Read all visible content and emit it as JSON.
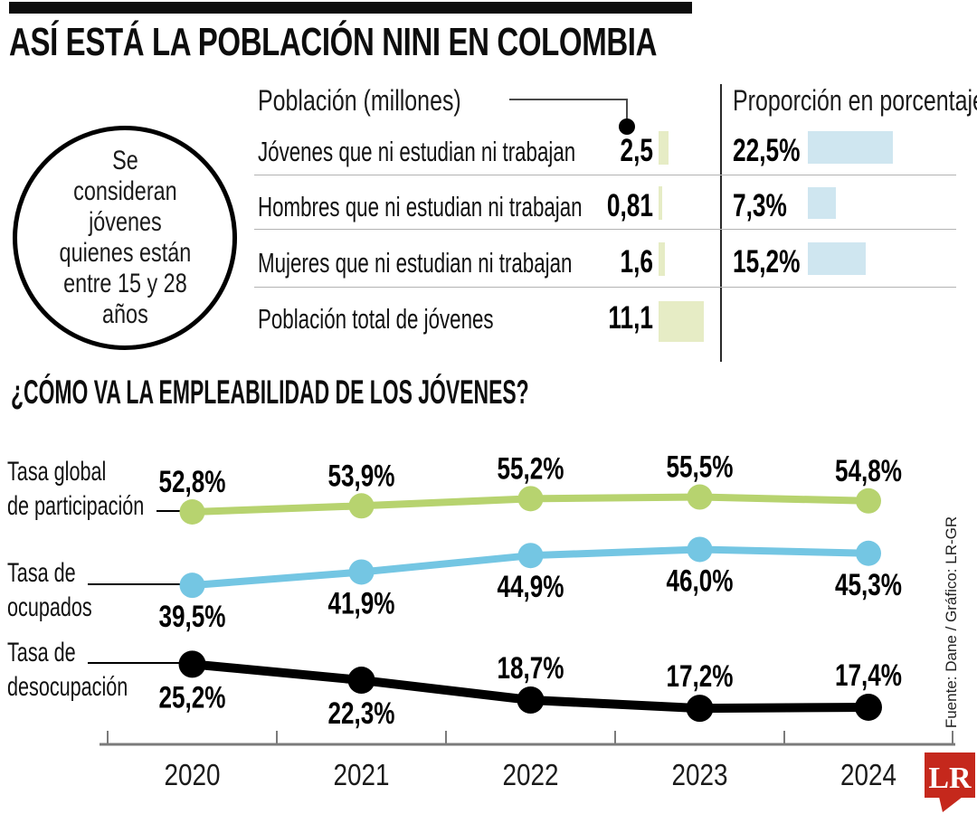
{
  "title": "ASÍ ESTÁ LA POBLACIÓN NINI EN COLOMBIA",
  "note_circle": {
    "text": "Se consideran jóvenes quienes están entre 15 y 28 años",
    "lines": [
      "Se",
      "consideran",
      "jóvenes",
      "quienes están",
      "entre 15 y 28",
      "años"
    ]
  },
  "table": {
    "col1_header": "Población (millones)",
    "col2_header": "Proporción en porcentaje",
    "rows": [
      {
        "label": "Jóvenes que ni estudian ni trabajan",
        "millones": "2,5",
        "millones_val": 2.5,
        "pct": "22,5%",
        "pct_val": 22.5
      },
      {
        "label": "Hombres que ni estudian ni trabajan",
        "millones": "0,81",
        "millones_val": 0.81,
        "pct": "7,3%",
        "pct_val": 7.3
      },
      {
        "label": "Mujeres que ni estudian ni trabajan",
        "millones": "1,6",
        "millones_val": 1.6,
        "pct": "15,2%",
        "pct_val": 15.2
      },
      {
        "label": "Población total de jóvenes",
        "millones": "11,1",
        "millones_val": 11.1,
        "pct": "",
        "pct_val": 0
      }
    ]
  },
  "section2_title": "¿CÓMO VA LA EMPLEABILIDAD DE LOS JÓVENES?",
  "chart_data": {
    "type": "line",
    "title": "¿Cómo va la empleabilidad de los jóvenes?",
    "x": [
      "2020",
      "2021",
      "2022",
      "2023",
      "2024"
    ],
    "unit": "%",
    "ylim": [
      15,
      58
    ],
    "grid": false,
    "legend_position": "left",
    "series": [
      {
        "name": "Tasa global de participación",
        "name_lines": [
          "Tasa global",
          "de participación"
        ],
        "color": "#b7d36f",
        "values": [
          52.8,
          53.9,
          55.2,
          55.5,
          54.8
        ],
        "labels": [
          "52,8%",
          "53,9%",
          "55,2%",
          "55,5%",
          "54,8%"
        ],
        "label_pos": [
          "above",
          "above",
          "above",
          "above",
          "above"
        ]
      },
      {
        "name": "Tasa de ocupados",
        "name_lines": [
          "Tasa de",
          "ocupados"
        ],
        "color": "#74c6e3",
        "values": [
          39.5,
          41.9,
          44.9,
          46.0,
          45.3
        ],
        "labels": [
          "39,5%",
          "41,9%",
          "44,9%",
          "46,0%",
          "45,3%"
        ],
        "label_pos": [
          "below",
          "below",
          "below",
          "below",
          "below"
        ]
      },
      {
        "name": "Tasa de desocupación",
        "name_lines": [
          "Tasa de",
          "desocupación"
        ],
        "color": "#000000",
        "values": [
          25.2,
          22.3,
          18.7,
          17.2,
          17.4
        ],
        "labels": [
          "25,2%",
          "22,3%",
          "18,7%",
          "17,2%",
          "17,4%"
        ],
        "label_pos": [
          "below",
          "below",
          "above",
          "above",
          "above"
        ]
      }
    ]
  },
  "source": "Fuente: Dane / Gráfico: LR-GR",
  "logo": {
    "text": "LR"
  },
  "colors": {
    "olive_bar": "#e6ecc5",
    "blue_bar": "#cfe6f0",
    "green_line": "#b7d36f",
    "blue_line": "#74c6e3",
    "black_line": "#000000",
    "logo_red": "#c5281c",
    "axis_gray": "#7b7b7b"
  }
}
